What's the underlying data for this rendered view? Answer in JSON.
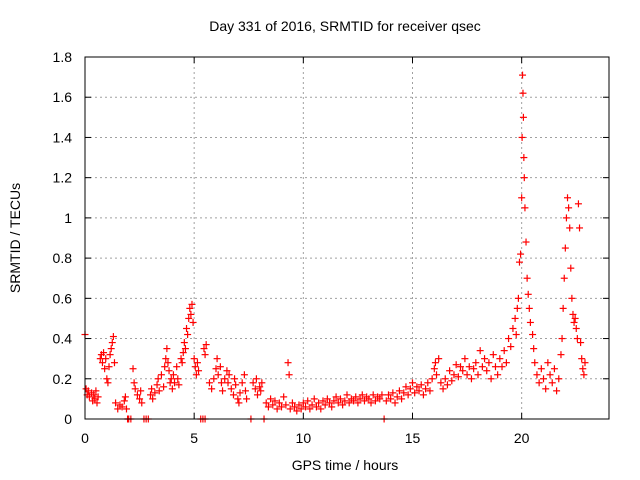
{
  "chart_data": {
    "type": "scatter",
    "title": "Day 331 of 2016, SRMTID for receiver qsec",
    "xlabel": "GPS time / hours",
    "ylabel": "SRMTID / TECUs",
    "xlim": [
      0,
      24
    ],
    "ylim": [
      0,
      1.8
    ],
    "xticks": [
      0,
      5,
      10,
      15,
      20
    ],
    "xtick_labels": [
      "0",
      "5",
      "10",
      "15",
      "20"
    ],
    "yticks": [
      0,
      0.2,
      0.4,
      0.6,
      0.8,
      1.0,
      1.2,
      1.4,
      1.6,
      1.8
    ],
    "ytick_labels": [
      "0",
      "0.2",
      "0.4",
      "0.6",
      "0.8",
      "1",
      "1.2",
      "1.4",
      "1.6",
      "1.8"
    ],
    "grid": true,
    "marker": "+",
    "series": [
      {
        "name": "SRMTID",
        "color": "#ff0000",
        "points": [
          [
            0.0,
            0.42
          ],
          [
            0.05,
            0.15
          ],
          [
            0.1,
            0.12
          ],
          [
            0.15,
            0.14
          ],
          [
            0.2,
            0.11
          ],
          [
            0.3,
            0.13
          ],
          [
            0.35,
            0.09
          ],
          [
            0.4,
            0.12
          ],
          [
            0.45,
            0.1
          ],
          [
            0.5,
            0.14
          ],
          [
            0.55,
            0.08
          ],
          [
            0.6,
            0.11
          ],
          [
            0.7,
            0.3
          ],
          [
            0.75,
            0.32
          ],
          [
            0.8,
            0.28
          ],
          [
            0.85,
            0.33
          ],
          [
            0.9,
            0.25
          ],
          [
            0.95,
            0.3
          ],
          [
            1.0,
            0.2
          ],
          [
            1.05,
            0.18
          ],
          [
            1.1,
            0.26
          ],
          [
            1.15,
            0.32
          ],
          [
            1.2,
            0.35
          ],
          [
            1.25,
            0.38
          ],
          [
            1.3,
            0.41
          ],
          [
            1.35,
            0.28
          ],
          [
            1.4,
            0.08
          ],
          [
            1.5,
            0.05
          ],
          [
            1.6,
            0.07
          ],
          [
            1.7,
            0.06
          ],
          [
            1.8,
            0.09
          ],
          [
            1.85,
            0.11
          ],
          [
            1.9,
            0.05
          ],
          [
            1.95,
            0.0
          ],
          [
            2.0,
            0.0
          ],
          [
            2.1,
            0.0
          ],
          [
            2.2,
            0.25
          ],
          [
            2.25,
            0.18
          ],
          [
            2.3,
            0.15
          ],
          [
            2.4,
            0.12
          ],
          [
            2.5,
            0.1
          ],
          [
            2.55,
            0.14
          ],
          [
            2.6,
            0.08
          ],
          [
            2.7,
            0.0
          ],
          [
            2.8,
            0.0
          ],
          [
            2.9,
            0.0
          ],
          [
            3.0,
            0.12
          ],
          [
            3.05,
            0.15
          ],
          [
            3.1,
            0.1
          ],
          [
            3.2,
            0.13
          ],
          [
            3.3,
            0.17
          ],
          [
            3.35,
            0.2
          ],
          [
            3.4,
            0.14
          ],
          [
            3.5,
            0.22
          ],
          [
            3.6,
            0.16
          ],
          [
            3.65,
            0.26
          ],
          [
            3.7,
            0.3
          ],
          [
            3.75,
            0.35
          ],
          [
            3.8,
            0.28
          ],
          [
            3.85,
            0.24
          ],
          [
            3.9,
            0.18
          ],
          [
            3.95,
            0.2
          ],
          [
            4.0,
            0.15
          ],
          [
            4.05,
            0.22
          ],
          [
            4.1,
            0.18
          ],
          [
            4.2,
            0.26
          ],
          [
            4.25,
            0.2
          ],
          [
            4.3,
            0.17
          ],
          [
            4.4,
            0.3
          ],
          [
            4.45,
            0.28
          ],
          [
            4.5,
            0.33
          ],
          [
            4.55,
            0.38
          ],
          [
            4.6,
            0.35
          ],
          [
            4.65,
            0.45
          ],
          [
            4.7,
            0.42
          ],
          [
            4.75,
            0.5
          ],
          [
            4.8,
            0.55
          ],
          [
            4.85,
            0.52
          ],
          [
            4.9,
            0.57
          ],
          [
            4.95,
            0.48
          ],
          [
            5.0,
            0.3
          ],
          [
            5.05,
            0.26
          ],
          [
            5.1,
            0.22
          ],
          [
            5.15,
            0.28
          ],
          [
            5.2,
            0.24
          ],
          [
            5.3,
            0.0
          ],
          [
            5.4,
            0.0
          ],
          [
            5.5,
            0.0
          ],
          [
            5.45,
            0.35
          ],
          [
            5.5,
            0.32
          ],
          [
            5.55,
            0.37
          ],
          [
            5.7,
            0.18
          ],
          [
            5.8,
            0.15
          ],
          [
            5.9,
            0.2
          ],
          [
            6.0,
            0.25
          ],
          [
            6.05,
            0.3
          ],
          [
            6.1,
            0.22
          ],
          [
            6.2,
            0.26
          ],
          [
            6.25,
            0.18
          ],
          [
            6.3,
            0.14
          ],
          [
            6.4,
            0.2
          ],
          [
            6.5,
            0.24
          ],
          [
            6.55,
            0.18
          ],
          [
            6.6,
            0.22
          ],
          [
            6.7,
            0.15
          ],
          [
            6.8,
            0.12
          ],
          [
            6.85,
            0.2
          ],
          [
            6.9,
            0.17
          ],
          [
            7.0,
            0.1
          ],
          [
            7.05,
            0.08
          ],
          [
            7.1,
            0.13
          ],
          [
            7.2,
            0.18
          ],
          [
            7.3,
            0.22
          ],
          [
            7.35,
            0.14
          ],
          [
            7.4,
            0.1
          ],
          [
            7.6,
            0.0
          ],
          [
            7.7,
            0.18
          ],
          [
            7.8,
            0.15
          ],
          [
            7.85,
            0.2
          ],
          [
            7.9,
            0.12
          ],
          [
            8.0,
            0.16
          ],
          [
            8.05,
            0.14
          ],
          [
            8.1,
            0.18
          ],
          [
            8.2,
            0.0
          ],
          [
            8.3,
            0.08
          ],
          [
            8.4,
            0.06
          ],
          [
            8.5,
            0.1
          ],
          [
            8.6,
            0.07
          ],
          [
            8.7,
            0.09
          ],
          [
            8.8,
            0.05
          ],
          [
            8.9,
            0.08
          ],
          [
            9.0,
            0.06
          ],
          [
            9.1,
            0.11
          ],
          [
            9.2,
            0.07
          ],
          [
            9.3,
            0.28
          ],
          [
            9.35,
            0.22
          ],
          [
            9.4,
            0.05
          ],
          [
            9.5,
            0.08
          ],
          [
            9.6,
            0.06
          ],
          [
            9.7,
            0.04
          ],
          [
            9.8,
            0.07
          ],
          [
            9.9,
            0.05
          ],
          [
            10.0,
            0.08
          ],
          [
            10.1,
            0.06
          ],
          [
            10.2,
            0.09
          ],
          [
            10.3,
            0.05
          ],
          [
            10.4,
            0.07
          ],
          [
            10.5,
            0.1
          ],
          [
            10.6,
            0.06
          ],
          [
            10.7,
            0.08
          ],
          [
            10.8,
            0.05
          ],
          [
            10.9,
            0.09
          ],
          [
            11.0,
            0.07
          ],
          [
            11.1,
            0.1
          ],
          [
            11.2,
            0.08
          ],
          [
            11.3,
            0.06
          ],
          [
            11.4,
            0.09
          ],
          [
            11.5,
            0.11
          ],
          [
            11.6,
            0.08
          ],
          [
            11.7,
            0.1
          ],
          [
            11.8,
            0.07
          ],
          [
            11.9,
            0.09
          ],
          [
            12.0,
            0.12
          ],
          [
            12.1,
            0.08
          ],
          [
            12.2,
            0.1
          ],
          [
            12.3,
            0.09
          ],
          [
            12.4,
            0.11
          ],
          [
            12.5,
            0.08
          ],
          [
            12.6,
            0.1
          ],
          [
            12.7,
            0.12
          ],
          [
            12.8,
            0.09
          ],
          [
            12.9,
            0.11
          ],
          [
            13.0,
            0.1
          ],
          [
            13.1,
            0.08
          ],
          [
            13.2,
            0.12
          ],
          [
            13.3,
            0.09
          ],
          [
            13.4,
            0.11
          ],
          [
            13.5,
            0.1
          ],
          [
            13.6,
            0.12
          ],
          [
            13.7,
            0.0
          ],
          [
            13.8,
            0.09
          ],
          [
            13.9,
            0.12
          ],
          [
            14.0,
            0.1
          ],
          [
            14.1,
            0.13
          ],
          [
            14.2,
            0.08
          ],
          [
            14.3,
            0.11
          ],
          [
            14.4,
            0.14
          ],
          [
            14.5,
            0.1
          ],
          [
            14.6,
            0.13
          ],
          [
            14.7,
            0.16
          ],
          [
            14.8,
            0.12
          ],
          [
            14.9,
            0.15
          ],
          [
            15.0,
            0.18
          ],
          [
            15.1,
            0.13
          ],
          [
            15.2,
            0.16
          ],
          [
            15.3,
            0.14
          ],
          [
            15.4,
            0.17
          ],
          [
            15.5,
            0.12
          ],
          [
            15.6,
            0.15
          ],
          [
            15.7,
            0.18
          ],
          [
            15.8,
            0.14
          ],
          [
            15.9,
            0.2
          ],
          [
            16.0,
            0.25
          ],
          [
            16.05,
            0.28
          ],
          [
            16.1,
            0.22
          ],
          [
            16.2,
            0.3
          ],
          [
            16.3,
            0.18
          ],
          [
            16.4,
            0.15
          ],
          [
            16.5,
            0.2
          ],
          [
            16.6,
            0.17
          ],
          [
            16.7,
            0.24
          ],
          [
            16.8,
            0.19
          ],
          [
            16.9,
            0.22
          ],
          [
            17.0,
            0.27
          ],
          [
            17.1,
            0.21
          ],
          [
            17.2,
            0.26
          ],
          [
            17.3,
            0.24
          ],
          [
            17.4,
            0.3
          ],
          [
            17.5,
            0.22
          ],
          [
            17.6,
            0.26
          ],
          [
            17.7,
            0.2
          ],
          [
            17.8,
            0.25
          ],
          [
            17.9,
            0.28
          ],
          [
            18.0,
            0.22
          ],
          [
            18.1,
            0.34
          ],
          [
            18.2,
            0.26
          ],
          [
            18.3,
            0.3
          ],
          [
            18.4,
            0.24
          ],
          [
            18.5,
            0.28
          ],
          [
            18.6,
            0.2
          ],
          [
            18.7,
            0.32
          ],
          [
            18.8,
            0.26
          ],
          [
            18.9,
            0.22
          ],
          [
            19.0,
            0.3
          ],
          [
            19.1,
            0.26
          ],
          [
            19.2,
            0.34
          ],
          [
            19.3,
            0.28
          ],
          [
            19.4,
            0.4
          ],
          [
            19.5,
            0.36
          ],
          [
            19.6,
            0.45
          ],
          [
            19.7,
            0.5
          ],
          [
            19.75,
            0.42
          ],
          [
            19.8,
            0.55
          ],
          [
            19.85,
            0.6
          ],
          [
            19.9,
            0.78
          ],
          [
            19.95,
            0.82
          ],
          [
            20.0,
            1.1
          ],
          [
            20.02,
            1.4
          ],
          [
            20.04,
            1.71
          ],
          [
            20.06,
            1.62
          ],
          [
            20.08,
            1.5
          ],
          [
            20.1,
            1.3
          ],
          [
            20.12,
            1.2
          ],
          [
            20.15,
            1.05
          ],
          [
            20.2,
            0.88
          ],
          [
            20.25,
            0.7
          ],
          [
            20.3,
            0.62
          ],
          [
            20.35,
            0.55
          ],
          [
            20.4,
            0.48
          ],
          [
            20.5,
            0.42
          ],
          [
            20.55,
            0.35
          ],
          [
            20.6,
            0.28
          ],
          [
            20.7,
            0.22
          ],
          [
            20.8,
            0.18
          ],
          [
            20.9,
            0.25
          ],
          [
            21.0,
            0.2
          ],
          [
            21.1,
            0.15
          ],
          [
            21.2,
            0.28
          ],
          [
            21.3,
            0.22
          ],
          [
            21.4,
            0.18
          ],
          [
            21.5,
            0.25
          ],
          [
            21.6,
            0.14
          ],
          [
            21.7,
            0.2
          ],
          [
            21.8,
            0.32
          ],
          [
            21.85,
            0.4
          ],
          [
            21.9,
            0.55
          ],
          [
            21.95,
            0.7
          ],
          [
            22.0,
            0.85
          ],
          [
            22.05,
            1.0
          ],
          [
            22.1,
            1.1
          ],
          [
            22.15,
            1.05
          ],
          [
            22.2,
            0.95
          ],
          [
            22.25,
            0.75
          ],
          [
            22.3,
            0.6
          ],
          [
            22.35,
            0.52
          ],
          [
            22.4,
            0.48
          ],
          [
            22.45,
            0.5
          ],
          [
            22.5,
            0.45
          ],
          [
            22.55,
            0.4
          ],
          [
            22.6,
            1.07
          ],
          [
            22.65,
            0.95
          ],
          [
            22.7,
            0.38
          ],
          [
            22.75,
            0.3
          ],
          [
            22.8,
            0.25
          ],
          [
            22.85,
            0.22
          ],
          [
            22.9,
            0.28
          ]
        ]
      }
    ]
  }
}
